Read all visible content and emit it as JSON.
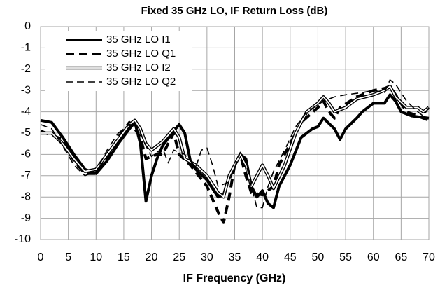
{
  "chart_data": {
    "type": "line",
    "title": "Fixed 35 GHz LO, IF Return Loss (dB)",
    "x_label": "IF Frequency  (GHz)",
    "xlim": [
      0,
      70
    ],
    "ylim": [
      -10,
      0
    ],
    "xticks": [
      0,
      5,
      10,
      15,
      20,
      25,
      30,
      35,
      40,
      45,
      50,
      55,
      60,
      65,
      70
    ],
    "yticks": [
      0,
      -1,
      -2,
      -3,
      -4,
      -5,
      -6,
      -7,
      -8,
      -9,
      -10
    ],
    "grid": true,
    "legend": "top-left",
    "series": [
      {
        "name": "35 GHz LO I1",
        "color": "#000000",
        "style": "solid",
        "x": [
          0,
          2,
          4,
          6,
          8,
          10,
          12,
          14,
          16,
          17,
          18,
          19,
          20,
          21,
          22,
          24,
          25,
          26,
          27,
          28,
          30,
          32,
          33,
          34,
          36,
          37,
          38,
          39,
          40,
          41,
          42,
          43,
          45,
          47,
          48,
          49,
          50,
          51,
          53,
          54,
          55,
          57,
          58,
          60,
          62,
          63,
          64,
          65,
          67,
          70
        ],
        "values": [
          -4.4,
          -4.5,
          -5.2,
          -6,
          -6.7,
          -6.9,
          -6.3,
          -5.5,
          -4.8,
          -4.5,
          -5.5,
          -8.2,
          -7,
          -6.2,
          -5.6,
          -4.9,
          -4.6,
          -5,
          -6.3,
          -6.7,
          -7.2,
          -8,
          -7.9,
          -7,
          -6,
          -6.2,
          -7.5,
          -8,
          -7.7,
          -8.3,
          -8.5,
          -7.5,
          -6.5,
          -5.2,
          -5,
          -4.8,
          -4.7,
          -4.3,
          -4.8,
          -5.3,
          -4.8,
          -4.3,
          -4,
          -3.6,
          -3.6,
          -3.2,
          -3.5,
          -4,
          -4.2,
          -4.3
        ]
      },
      {
        "name": "35 GHz LO Q1",
        "color": "#000000",
        "style": "dashed",
        "x": [
          0,
          2,
          4,
          6,
          8,
          10,
          12,
          14,
          16,
          17,
          18,
          19,
          21,
          22,
          23,
          24,
          25,
          27,
          30,
          32,
          33,
          34,
          35,
          36,
          37,
          38,
          40,
          42,
          43,
          45,
          47,
          50,
          51,
          52,
          53,
          54,
          57,
          60,
          62,
          63,
          64,
          66,
          68,
          70
        ],
        "values": [
          -4.9,
          -5.1,
          -5.3,
          -6.3,
          -6.9,
          -6.9,
          -6.2,
          -5.2,
          -4.5,
          -4.8,
          -5.2,
          -6.2,
          -6,
          -6,
          -5.5,
          -5,
          -6,
          -6.5,
          -7.5,
          -8.7,
          -9.2,
          -8,
          -6.5,
          -6,
          -7,
          -7.8,
          -7.9,
          -7.5,
          -6.5,
          -5.5,
          -4.5,
          -3.8,
          -3.5,
          -4,
          -4.3,
          -3.8,
          -3.3,
          -3,
          -2.9,
          -2.8,
          -3.2,
          -4,
          -4.2,
          -4.4
        ]
      },
      {
        "name": "35 GHz LO I2",
        "color": "#000000",
        "style": "double",
        "x": [
          0,
          2,
          4,
          6,
          8,
          10,
          12,
          14,
          16,
          17,
          18,
          19,
          20,
          22,
          24,
          25,
          26,
          28,
          30,
          32,
          33,
          34,
          36,
          37,
          38,
          40,
          41,
          42,
          44,
          46,
          48,
          50,
          51,
          52,
          53,
          55,
          57,
          60,
          62,
          63,
          64,
          66,
          68,
          69,
          70
        ],
        "values": [
          -5,
          -5,
          -5.5,
          -6.2,
          -6.8,
          -6.7,
          -6,
          -5.3,
          -4.6,
          -4.4,
          -4.8,
          -5.5,
          -5.8,
          -5.4,
          -4.8,
          -5.2,
          -6.2,
          -6.5,
          -7,
          -7.8,
          -8,
          -7,
          -6,
          -6.5,
          -7.5,
          -6.5,
          -7,
          -7.6,
          -6.5,
          -5,
          -4,
          -3.6,
          -3.3,
          -3.6,
          -4,
          -3.8,
          -3.4,
          -3.2,
          -3,
          -2.8,
          -3.3,
          -3.8,
          -3.8,
          -4,
          -3.8
        ]
      },
      {
        "name": "35 GHz LO Q2",
        "color": "#000000",
        "style": "thin-dashed",
        "x": [
          0,
          2,
          4,
          6,
          8,
          10,
          12,
          14,
          16,
          17,
          18,
          19,
          20,
          22,
          23,
          24,
          26,
          28,
          29,
          30,
          31,
          32,
          34,
          36,
          37,
          38,
          39,
          40,
          41,
          42,
          44,
          46,
          48,
          51,
          53,
          55,
          58,
          60,
          62,
          63,
          64,
          66,
          68,
          69,
          70
        ],
        "values": [
          -4.6,
          -4.8,
          -5.6,
          -6.5,
          -7,
          -6.8,
          -5.8,
          -5,
          -4.6,
          -4.5,
          -5,
          -5.6,
          -6.1,
          -5.7,
          -6.4,
          -5.8,
          -6,
          -6.6,
          -5.8,
          -5.7,
          -6.5,
          -7.5,
          -7.3,
          -5.9,
          -6.4,
          -7.5,
          -8.5,
          -8.5,
          -7.5,
          -6.8,
          -5.8,
          -4.7,
          -4,
          -3.5,
          -3.3,
          -3.2,
          -3.1,
          -3,
          -3.1,
          -2.5,
          -2.7,
          -3.5,
          -4,
          -4.2,
          -3.8
        ]
      }
    ]
  }
}
